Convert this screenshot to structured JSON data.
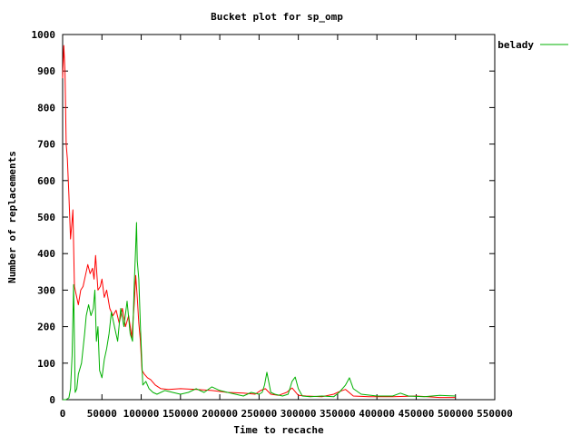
{
  "chart_data": {
    "type": "line",
    "title": "Bucket plot for sp_omp",
    "xlabel": "Time to recache",
    "ylabel": "Number of replacements",
    "xlim": [
      0,
      550000
    ],
    "ylim": [
      0,
      1000
    ],
    "x_ticks": [
      "0",
      "50000",
      "100000",
      "150000",
      "200000",
      "250000",
      "300000",
      "350000",
      "400000",
      "450000",
      "500000",
      "550000"
    ],
    "y_ticks": [
      "0",
      "100",
      "200",
      "300",
      "400",
      "500",
      "600",
      "700",
      "800",
      "900",
      "1000"
    ],
    "grid": false,
    "legend_position": "top-right, outside plot",
    "series": [
      {
        "name": "",
        "color": "#ff0000",
        "x": [
          0,
          1500,
          3000,
          4500,
          6000,
          8000,
          10000,
          12000,
          13000,
          15000,
          17000,
          20000,
          23000,
          26000,
          29000,
          32000,
          35000,
          38000,
          40000,
          42000,
          45000,
          48000,
          50000,
          53000,
          56000,
          60000,
          64000,
          68000,
          72000,
          76000,
          80000,
          84000,
          88000,
          91000,
          93000,
          95000,
          97000,
          99000,
          101000,
          104000,
          108000,
          112000,
          118000,
          125000,
          135000,
          150000,
          170000,
          190000,
          210000,
          230000,
          245000,
          252000,
          258000,
          265000,
          275000,
          285000,
          292000,
          300000,
          310000,
          330000,
          345000,
          352000,
          360000,
          370000,
          390000,
          420000,
          450000,
          480000,
          500000
        ],
        "values": [
          880,
          970,
          900,
          700,
          660,
          560,
          440,
          490,
          520,
          310,
          290,
          260,
          300,
          310,
          340,
          370,
          345,
          360,
          330,
          395,
          300,
          310,
          330,
          280,
          300,
          250,
          230,
          245,
          210,
          250,
          200,
          230,
          170,
          260,
          340,
          280,
          210,
          160,
          80,
          70,
          60,
          55,
          40,
          30,
          28,
          30,
          28,
          25,
          20,
          18,
          15,
          25,
          30,
          15,
          12,
          20,
          32,
          12,
          10,
          8,
          15,
          22,
          28,
          10,
          8,
          8,
          10,
          6,
          6
        ]
      },
      {
        "name": "belady",
        "color": "#00b000",
        "x": [
          0,
          4000,
          8000,
          10000,
          12000,
          14000,
          16000,
          18000,
          20000,
          24000,
          28000,
          30000,
          33000,
          36000,
          39000,
          41000,
          43000,
          45000,
          47000,
          50000,
          53000,
          56000,
          59000,
          62000,
          66000,
          70000,
          74000,
          78000,
          82000,
          86000,
          89000,
          91000,
          93000,
          94000,
          95000,
          97000,
          99000,
          102000,
          106000,
          110000,
          115000,
          120000,
          130000,
          140000,
          150000,
          160000,
          170000,
          180000,
          190000,
          200000,
          210000,
          220000,
          230000,
          240000,
          250000,
          254000,
          257000,
          260000,
          265000,
          270000,
          280000,
          287000,
          292000,
          296000,
          300000,
          305000,
          315000,
          330000,
          345000,
          352000,
          360000,
          365000,
          370000,
          380000,
          400000,
          420000,
          430000,
          440000,
          460000,
          480000,
          500000
        ],
        "values": [
          0,
          0,
          5,
          30,
          120,
          315,
          20,
          30,
          70,
          100,
          180,
          230,
          260,
          230,
          250,
          300,
          160,
          200,
          80,
          60,
          110,
          140,
          180,
          240,
          200,
          160,
          250,
          200,
          270,
          180,
          160,
          310,
          420,
          485,
          380,
          330,
          200,
          40,
          50,
          30,
          20,
          15,
          25,
          20,
          15,
          20,
          30,
          20,
          35,
          25,
          20,
          15,
          10,
          20,
          15,
          20,
          40,
          75,
          20,
          15,
          10,
          15,
          50,
          62,
          30,
          10,
          8,
          10,
          8,
          20,
          40,
          60,
          30,
          15,
          10,
          10,
          18,
          10,
          8,
          12,
          10
        ]
      }
    ]
  }
}
